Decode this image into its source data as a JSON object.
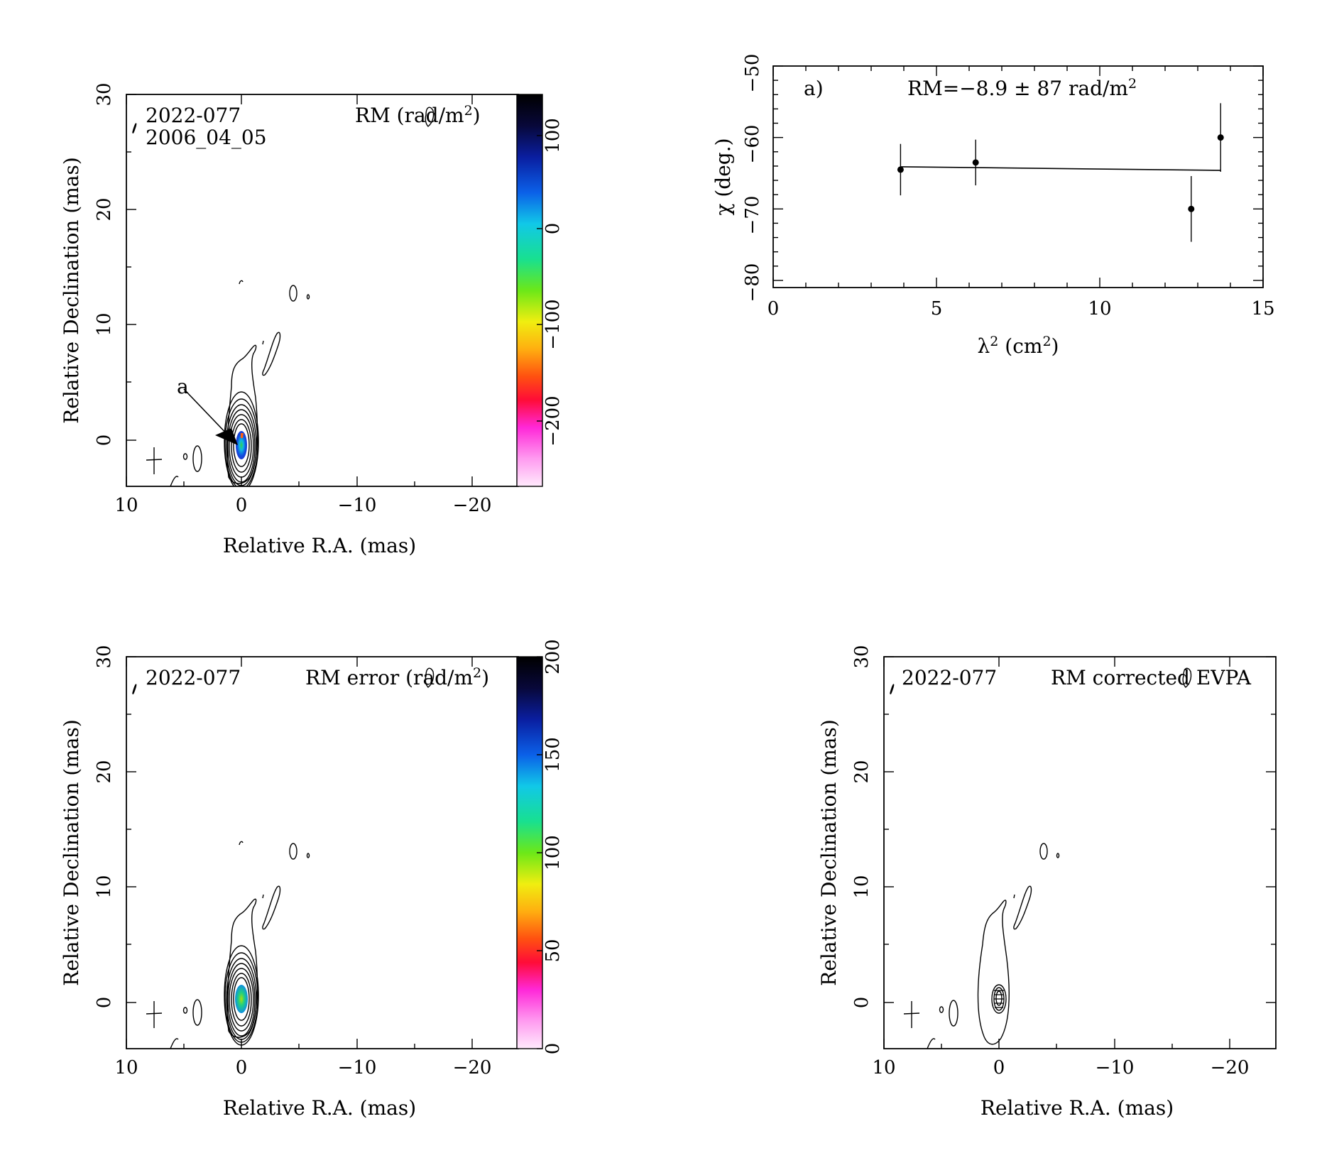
{
  "panels": {
    "rm_map": {
      "source": "2022-077",
      "date": "2006_04_05",
      "quantity_prefix": "RM (rad/m",
      "quantity_sup": "2",
      "quantity_suffix": ")",
      "marker_label": "a",
      "xlabel": "Relative R.A. (mas)",
      "ylabel": "Relative Declination (mas)",
      "xticks": [
        "10",
        "0",
        "−10",
        "−20"
      ],
      "yticks": [
        "30",
        "20",
        "10",
        "0"
      ],
      "colorbar_ticks": [
        "100",
        "0",
        "−100",
        "−200"
      ]
    },
    "rm_error_map": {
      "source": "2022-077",
      "quantity_prefix": "RM error (rad/m",
      "quantity_sup": "2",
      "quantity_suffix": ")",
      "xlabel": "Relative R.A. (mas)",
      "ylabel": "Relative Declination (mas)",
      "xticks": [
        "10",
        "0",
        "−10",
        "−20"
      ],
      "yticks": [
        "30",
        "20",
        "10",
        "0"
      ],
      "colorbar_ticks": [
        "200",
        "150",
        "100",
        "50",
        "0"
      ]
    },
    "evpa_map": {
      "source": "2022-077",
      "quantity": "RM corrected EVPA",
      "xlabel": "Relative R.A. (mas)",
      "ylabel": "Relative Declination (mas)",
      "xticks": [
        "10",
        "0",
        "−10",
        "−20"
      ],
      "yticks": [
        "30",
        "20",
        "10",
        "0"
      ]
    },
    "rm_fit": {
      "panel_label": "a)",
      "rm_text_prefix": "RM=−8.9 ± 87 rad/m",
      "rm_text_sup": "2",
      "xlabel_main": "λ",
      "xlabel_sup": "2",
      "xlabel_rest": " (cm",
      "xlabel_sup2": "2",
      "xlabel_end": ")",
      "ylabel": "χ (deg.)",
      "xticks": [
        "0",
        "5",
        "10",
        "15"
      ],
      "yticks": [
        "−50",
        "−60",
        "−70",
        "−80"
      ]
    }
  },
  "chart_data": [
    {
      "type": "scatter",
      "title": "",
      "xlabel": "λ² (cm²)",
      "ylabel": "χ (deg.)",
      "xlim": [
        0,
        15
      ],
      "ylim": [
        -81,
        -50
      ],
      "points": [
        {
          "x": 3.9,
          "y": -64.5,
          "err": 3.6
        },
        {
          "x": 6.2,
          "y": -63.5,
          "err": 3.2
        },
        {
          "x": 12.8,
          "y": -70.0,
          "err": 4.6
        },
        {
          "x": 13.7,
          "y": -60.0,
          "err": 4.8
        }
      ],
      "fit_line": {
        "x": [
          3.9,
          13.7
        ],
        "y": [
          -64.1,
          -64.6
        ]
      },
      "annotation": "RM=−8.9 ± 87 rad/m²"
    },
    {
      "type": "heatmap",
      "xlabel": "Relative R.A. (mas)",
      "ylabel": "Relative Declination (mas)",
      "xlim": [
        10,
        -24
      ],
      "ylim": [
        -4,
        30
      ],
      "colorbar": {
        "label": "RM (rad/m²)",
        "range": [
          -250,
          130
        ],
        "ticks": [
          100,
          0,
          -100,
          -200
        ]
      }
    },
    {
      "type": "heatmap",
      "xlabel": "Relative R.A. (mas)",
      "ylabel": "Relative Declination (mas)",
      "xlim": [
        10,
        -24
      ],
      "ylim": [
        -4,
        30
      ],
      "colorbar": {
        "label": "RM error (rad/m²)",
        "range": [
          0,
          200
        ],
        "ticks": [
          200,
          150,
          100,
          50,
          0
        ]
      }
    }
  ]
}
